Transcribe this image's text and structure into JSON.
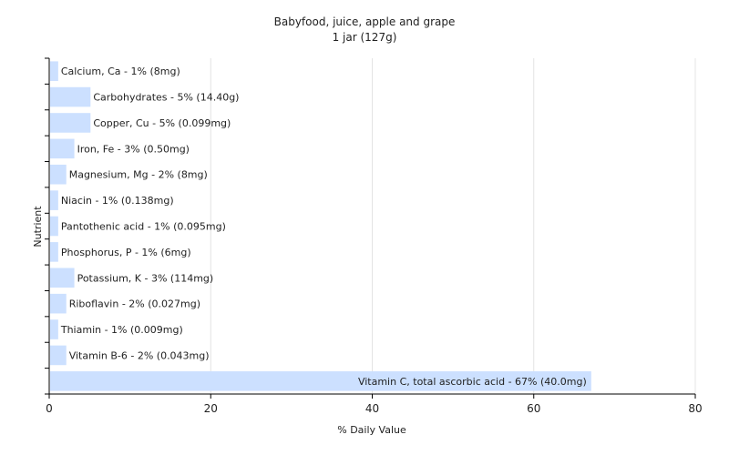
{
  "chart_data": {
    "type": "bar",
    "orientation": "horizontal",
    "title": "Babyfood, juice, apple and grape",
    "subtitle": "1 jar (127g)",
    "xlabel": "% Daily Value",
    "ylabel": "Nutrient",
    "xlim": [
      0,
      80
    ],
    "xticks": [
      0,
      20,
      40,
      60,
      80
    ],
    "grid": true,
    "bar_color": "#cce0ff",
    "categories": [
      "Calcium, Ca",
      "Carbohydrates",
      "Copper, Cu",
      "Iron, Fe",
      "Magnesium, Mg",
      "Niacin",
      "Pantothenic acid",
      "Phosphorus, P",
      "Potassium, K",
      "Riboflavin",
      "Thiamin",
      "Vitamin B-6",
      "Vitamin C, total ascorbic acid"
    ],
    "values": [
      1,
      5,
      5,
      3,
      2,
      1,
      1,
      1,
      3,
      2,
      1,
      2,
      67
    ],
    "labels": [
      "Calcium, Ca - 1% (8mg)",
      "Carbohydrates - 5% (14.40g)",
      "Copper, Cu - 5% (0.099mg)",
      "Iron, Fe - 3% (0.50mg)",
      "Magnesium, Mg - 2% (8mg)",
      "Niacin - 1% (0.138mg)",
      "Pantothenic acid - 1% (0.095mg)",
      "Phosphorus, P - 1% (6mg)",
      "Potassium, K - 3% (114mg)",
      "Riboflavin - 2% (0.027mg)",
      "Thiamin - 1% (0.009mg)",
      "Vitamin B-6 - 2% (0.043mg)",
      "Vitamin C, total ascorbic acid - 67% (40.0mg)"
    ]
  }
}
